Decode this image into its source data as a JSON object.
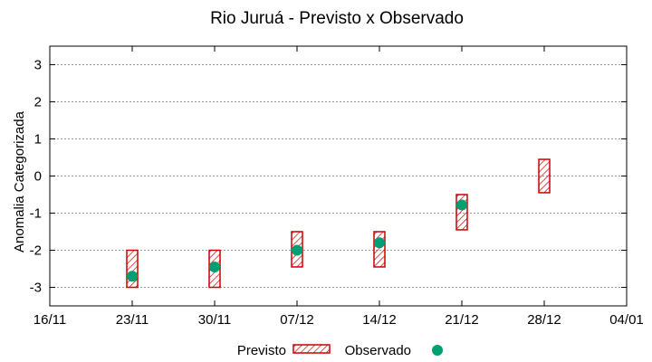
{
  "chart_data": {
    "type": "range-and-point",
    "title": "Rio Juruá - Previsto x Observado",
    "ylabel": "Anomalia Categorizada",
    "xlabel": "",
    "x_tick_labels": [
      "16/11",
      "23/11",
      "30/11",
      "07/12",
      "14/12",
      "21/12",
      "28/12",
      "04/01"
    ],
    "xlim": [
      "16/11",
      "04/01"
    ],
    "ylim": [
      -3.5,
      3.5
    ],
    "y_ticks": [
      -3,
      -2,
      -1,
      0,
      1,
      2,
      3
    ],
    "grid": true,
    "legend_position": "bottom",
    "series": [
      {
        "name": "Previsto",
        "style": "hatched-box",
        "color": "#cc0000",
        "ranges": [
          {
            "x": "23/11",
            "low": -3.0,
            "high": -2.0
          },
          {
            "x": "30/11",
            "low": -3.0,
            "high": -2.0
          },
          {
            "x": "07/12",
            "low": -2.45,
            "high": -1.5
          },
          {
            "x": "14/12",
            "low": -2.45,
            "high": -1.5
          },
          {
            "x": "21/12",
            "low": -1.45,
            "high": -0.5
          },
          {
            "x": "28/12",
            "low": -0.45,
            "high": 0.45
          }
        ]
      },
      {
        "name": "Observado",
        "style": "point",
        "color": "#009e73",
        "points": [
          {
            "x": "23/11",
            "y": -2.7
          },
          {
            "x": "30/11",
            "y": -2.45
          },
          {
            "x": "07/12",
            "y": -2.0
          },
          {
            "x": "14/12",
            "y": -1.8
          },
          {
            "x": "21/12",
            "y": -0.78
          }
        ]
      }
    ]
  }
}
